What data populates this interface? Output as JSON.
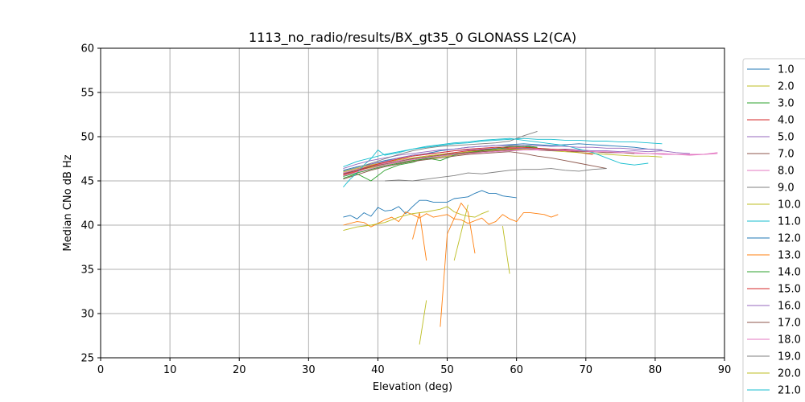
{
  "chart_data": {
    "type": "line",
    "title": "1113_no_radio/results/BX_gt35_0 GLONASS L2(CA)",
    "xlabel": "Elevation (deg)",
    "ylabel": "Median CNo dB Hz",
    "xlim": [
      0,
      90
    ],
    "ylim": [
      25,
      60
    ],
    "xticks": [
      0,
      10,
      20,
      30,
      40,
      50,
      60,
      70,
      80,
      90
    ],
    "yticks": [
      25,
      30,
      35,
      40,
      45,
      50,
      55,
      60
    ],
    "grid": true,
    "legend_position": "right, outside plot (clipped)",
    "series": [
      {
        "name": "1.0",
        "color": "#1f77b4",
        "x": [
          35,
          37,
          39,
          41,
          43,
          45,
          47,
          49,
          51,
          53,
          55,
          57,
          59,
          61,
          63,
          65,
          67,
          69,
          71,
          73,
          75,
          77,
          79,
          81
        ],
        "y": [
          46.2,
          46.6,
          46.9,
          47.3,
          47.6,
          47.9,
          48.1,
          48.4,
          48.6,
          48.8,
          48.9,
          49.0,
          49.1,
          49.2,
          49.1,
          49.0,
          49.1,
          49.2,
          49.1,
          49.0,
          48.9,
          48.8,
          48.6,
          48.5
        ]
      },
      {
        "name": "2.0",
        "color": "#bcbd22",
        "x": [
          35,
          37,
          39,
          41,
          43,
          45,
          47,
          49,
          51,
          53,
          55,
          57,
          59,
          61,
          63
        ],
        "y": [
          45.9,
          46.2,
          46.5,
          46.8,
          47.1,
          47.3,
          47.5,
          47.7,
          47.9,
          48.1,
          48.3,
          48.4,
          48.6,
          48.7,
          48.8
        ]
      },
      {
        "name": "3.0",
        "color": "#2ca02c",
        "x": [
          35,
          37,
          39,
          41,
          43,
          45,
          47,
          49,
          51,
          53,
          55,
          57,
          59,
          61,
          63
        ],
        "y": [
          45.3,
          45.8,
          45.0,
          46.2,
          46.8,
          47.1,
          47.6,
          47.3,
          47.9,
          48.3,
          48.5,
          48.7,
          48.9,
          49.0,
          48.8
        ]
      },
      {
        "name": "4.0",
        "color": "#d62728",
        "x": [
          35,
          37,
          39,
          41,
          43,
          45,
          47,
          49,
          51,
          53,
          55,
          57,
          59,
          61,
          63,
          65,
          67,
          69,
          71
        ],
        "y": [
          45.6,
          46.1,
          46.6,
          47.0,
          47.4,
          47.6,
          47.8,
          48.0,
          48.2,
          48.4,
          48.5,
          48.6,
          48.7,
          48.7,
          48.6,
          48.5,
          48.4,
          48.2,
          48.0
        ]
      },
      {
        "name": "5.0",
        "color": "#9467bd",
        "x": [
          35,
          37,
          39,
          41,
          43,
          45,
          47,
          49,
          51,
          53,
          55,
          57,
          59,
          61,
          63,
          65,
          67,
          69,
          71,
          73,
          75,
          77,
          79,
          81,
          83,
          85
        ],
        "y": [
          45.8,
          46.3,
          46.9,
          47.2,
          47.6,
          47.9,
          48.1,
          48.2,
          48.4,
          48.5,
          48.6,
          48.7,
          48.6,
          48.7,
          48.6,
          48.5,
          48.6,
          48.5,
          48.4,
          48.4,
          48.3,
          48.4,
          48.3,
          48.4,
          48.2,
          48.1
        ]
      },
      {
        "name": "7.0",
        "color": "#8c564b",
        "x": [
          35,
          37,
          39,
          41,
          43,
          45,
          47,
          49,
          51,
          53,
          55,
          57,
          59,
          61,
          63,
          65,
          67,
          69,
          71,
          73
        ],
        "y": [
          45.2,
          45.7,
          46.2,
          46.6,
          46.9,
          47.2,
          47.4,
          47.6,
          47.8,
          48.0,
          48.1,
          48.2,
          48.3,
          48.1,
          47.8,
          47.6,
          47.3,
          47.0,
          46.7,
          46.4
        ]
      },
      {
        "name": "8.0",
        "color": "#e377c2",
        "x": [
          35,
          37,
          39,
          41,
          43,
          45,
          47,
          49,
          51,
          53,
          55,
          57,
          59,
          61,
          63,
          65,
          67,
          69,
          71,
          73,
          75,
          77,
          79,
          81,
          83,
          85,
          87,
          89
        ],
        "y": [
          45.9,
          46.3,
          46.7,
          47.0,
          47.3,
          47.5,
          47.7,
          47.9,
          48.0,
          48.2,
          48.3,
          48.4,
          48.5,
          48.5,
          48.6,
          48.5,
          48.4,
          48.3,
          48.3,
          48.2,
          48.2,
          48.1,
          48.1,
          48.0,
          48.0,
          47.9,
          48.0,
          48.1
        ]
      },
      {
        "name": "9.0",
        "color": "#7f7f7f",
        "x": [
          41,
          43,
          45,
          47,
          49,
          51,
          53,
          55,
          57,
          59,
          61,
          63,
          65,
          67,
          69,
          71,
          73
        ],
        "y": [
          45.0,
          45.1,
          45.0,
          45.2,
          45.4,
          45.6,
          45.9,
          45.8,
          46.0,
          46.2,
          46.3,
          46.3,
          46.4,
          46.2,
          46.1,
          46.3,
          46.4
        ]
      },
      {
        "name": "10.0",
        "color": "#bcbd22",
        "x": [
          35,
          37,
          39,
          41,
          43,
          45,
          47,
          49,
          51,
          53,
          55,
          57,
          59,
          61,
          63,
          65,
          67,
          69,
          71,
          73,
          75,
          77,
          79,
          81
        ],
        "y": [
          46.0,
          46.4,
          46.8,
          47.1,
          47.4,
          47.6,
          47.8,
          48.0,
          48.1,
          48.3,
          48.4,
          48.5,
          48.6,
          48.6,
          48.5,
          48.4,
          48.3,
          48.2,
          48.1,
          48.0,
          47.9,
          47.8,
          47.8,
          47.7
        ]
      },
      {
        "name": "11.0",
        "color": "#17becf",
        "x": [
          35,
          36,
          37,
          38,
          39,
          40,
          41,
          43,
          45,
          47,
          49,
          51,
          53,
          55,
          57,
          59,
          61,
          63,
          65,
          67,
          69,
          71,
          73,
          75,
          77,
          79
        ],
        "y": [
          44.3,
          45.2,
          45.9,
          46.8,
          47.5,
          48.5,
          47.9,
          48.2,
          48.6,
          48.9,
          49.1,
          49.3,
          49.4,
          49.6,
          49.7,
          49.8,
          49.6,
          49.4,
          49.2,
          49.0,
          48.6,
          48.2,
          47.6,
          47.0,
          46.8,
          47.0
        ]
      },
      {
        "name": "12.0",
        "color": "#1f77b4",
        "x": [
          35,
          36,
          37,
          38,
          39,
          40,
          41,
          42,
          43,
          44,
          45,
          46,
          47,
          48,
          49,
          50,
          51,
          52,
          53,
          54,
          55,
          56,
          57,
          58,
          59,
          60
        ],
        "y": [
          40.9,
          41.1,
          40.7,
          41.4,
          41.0,
          42.0,
          41.6,
          41.7,
          42.1,
          41.3,
          42.1,
          42.8,
          42.8,
          42.6,
          42.6,
          42.6,
          43.0,
          43.1,
          43.2,
          43.6,
          43.9,
          43.6,
          43.6,
          43.3,
          43.2,
          43.1
        ]
      },
      {
        "name": "13.0",
        "color": "#ff7f0e",
        "x": [
          35,
          37,
          38,
          39,
          40,
          41,
          42,
          43,
          44,
          45,
          46,
          47,
          48,
          50,
          51,
          52,
          53,
          54,
          55,
          56,
          57,
          58,
          59,
          60,
          61,
          62,
          63,
          64,
          65,
          66
        ],
        "y": [
          40.0,
          40.4,
          40.3,
          39.8,
          40.2,
          40.6,
          40.9,
          40.4,
          41.5,
          41.2,
          40.8,
          41.3,
          40.9,
          41.2,
          40.7,
          40.6,
          40.2,
          40.5,
          40.8,
          40.1,
          40.4,
          41.2,
          40.7,
          40.4,
          41.4,
          41.4,
          41.3,
          41.2,
          40.9,
          41.2
        ]
      },
      {
        "name": "14.0",
        "color": "#2ca02c",
        "x": [
          35,
          37,
          39,
          41,
          43,
          45,
          47,
          49,
          51,
          53,
          55,
          57,
          59,
          61,
          63,
          65,
          67
        ],
        "y": [
          45.5,
          45.9,
          46.3,
          46.7,
          47.0,
          47.3,
          47.5,
          47.8,
          48.0,
          48.2,
          48.4,
          48.6,
          48.8,
          48.9,
          48.7,
          48.5,
          48.4
        ]
      },
      {
        "name": "15.0",
        "color": "#d62728",
        "x": [
          35,
          37,
          39,
          41,
          43,
          45,
          47,
          49,
          51,
          53,
          55,
          57,
          59,
          61,
          63,
          65,
          67,
          69,
          71
        ],
        "y": [
          45.7,
          46.2,
          46.7,
          47.1,
          47.5,
          47.8,
          48.0,
          48.2,
          48.4,
          48.6,
          48.7,
          48.8,
          48.8,
          48.8,
          48.7,
          48.6,
          48.5,
          48.4,
          48.3
        ]
      },
      {
        "name": "16.0",
        "color": "#9467bd",
        "x": [
          35,
          37,
          39,
          41,
          43,
          45,
          47,
          49,
          51,
          53,
          55,
          57,
          59,
          61,
          63,
          65,
          67,
          69,
          71,
          73,
          75,
          77,
          79,
          81
        ],
        "y": [
          46.4,
          46.9,
          47.3,
          47.6,
          47.9,
          48.1,
          48.3,
          48.5,
          48.6,
          48.8,
          48.9,
          49.0,
          49.0,
          49.0,
          49.0,
          48.9,
          48.9,
          48.8,
          48.8,
          48.7,
          48.7,
          48.6,
          48.6,
          48.5
        ]
      },
      {
        "name": "17.0",
        "color": "#8c564b",
        "x": [
          35,
          37,
          39,
          41,
          43,
          45,
          47,
          49,
          51,
          53,
          55,
          57,
          59,
          61,
          63,
          65,
          67,
          69,
          71,
          73,
          75,
          77
        ],
        "y": [
          45.8,
          46.2,
          46.6,
          46.9,
          47.2,
          47.5,
          47.7,
          47.9,
          48.1,
          48.2,
          48.3,
          48.4,
          48.5,
          48.5,
          48.5,
          48.4,
          48.4,
          48.3,
          48.3,
          48.2,
          48.2,
          48.1
        ]
      },
      {
        "name": "18.0",
        "color": "#e377c2",
        "x": [
          35,
          37,
          39,
          41,
          43,
          45,
          47,
          49,
          51,
          53,
          55,
          57,
          59,
          61,
          63,
          65,
          67,
          69,
          71,
          73,
          75,
          77,
          79,
          81,
          83,
          85,
          87,
          89
        ],
        "y": [
          45.6,
          46.0,
          46.4,
          46.8,
          47.1,
          47.4,
          47.6,
          47.8,
          48.0,
          48.1,
          48.2,
          48.3,
          48.4,
          48.5,
          48.5,
          48.5,
          48.4,
          48.4,
          48.3,
          48.3,
          48.2,
          48.2,
          48.1,
          48.1,
          48.0,
          48.0,
          48.0,
          48.2
        ]
      },
      {
        "name": "19.0",
        "color": "#7f7f7f",
        "x": [
          35,
          37,
          39,
          41,
          43,
          45,
          47,
          49,
          51,
          53,
          55,
          57,
          59,
          61,
          63
        ],
        "y": [
          46.1,
          46.5,
          47.0,
          47.5,
          48.0,
          48.4,
          48.7,
          48.9,
          49.0,
          49.1,
          49.2,
          49.3,
          49.5,
          50.1,
          50.6
        ]
      },
      {
        "name": "20.0",
        "color": "#bcbd22",
        "x": [
          35,
          37,
          39,
          41,
          43,
          45,
          47,
          49,
          50,
          51,
          52,
          53,
          54,
          55,
          56
        ],
        "y": [
          39.4,
          39.8,
          40.0,
          40.3,
          40.9,
          41.3,
          41.5,
          41.8,
          42.1,
          41.5,
          41.2,
          41.0,
          40.9,
          41.3,
          41.6
        ]
      },
      {
        "name": "21.0",
        "color": "#17becf",
        "x": [
          35,
          37,
          39,
          41,
          43,
          45,
          47,
          49,
          51,
          53,
          55,
          57,
          59,
          61,
          63,
          65,
          67,
          69,
          71,
          73,
          75,
          77,
          79,
          81
        ],
        "y": [
          46.6,
          47.2,
          47.6,
          48.0,
          48.3,
          48.6,
          48.8,
          49.0,
          49.2,
          49.3,
          49.5,
          49.6,
          49.7,
          49.8,
          49.7,
          49.7,
          49.6,
          49.6,
          49.5,
          49.5,
          49.4,
          49.4,
          49.3,
          49.2
        ]
      },
      {
        "name": "",
        "color": "#ff7f0e",
        "x": [
          45,
          46,
          47
        ],
        "y": [
          38.4,
          41.4,
          36.0
        ]
      },
      {
        "name": "",
        "color": "#ff7f0e",
        "x": [
          49,
          50,
          52,
          53,
          54
        ],
        "y": [
          28.5,
          39.0,
          42.5,
          41.5,
          36.8
        ]
      },
      {
        "name": "",
        "color": "#bcbd22",
        "x": [
          46,
          47
        ],
        "y": [
          26.5,
          31.5
        ]
      },
      {
        "name": "",
        "color": "#bcbd22",
        "x": [
          51,
          53
        ],
        "y": [
          36.0,
          42.3
        ]
      },
      {
        "name": "",
        "color": "#bcbd22",
        "x": [
          58,
          59
        ],
        "y": [
          39.9,
          34.5
        ]
      }
    ]
  }
}
